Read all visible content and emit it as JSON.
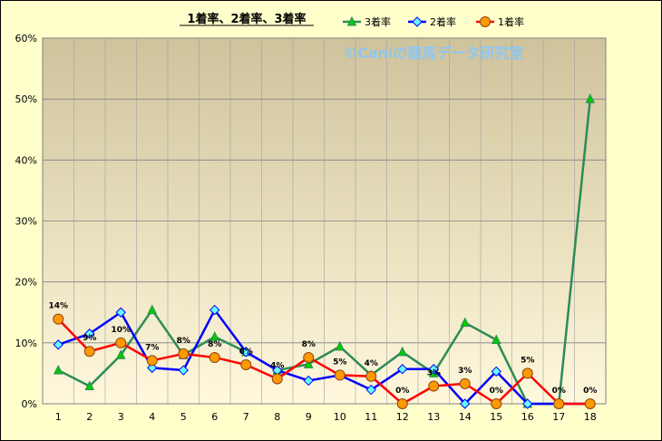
{
  "chart_data": {
    "type": "line",
    "title": "1着率、2着率、3着率",
    "watermark": "©Caniの競馬データ研究室",
    "categories": [
      "1",
      "2",
      "3",
      "4",
      "5",
      "6",
      "7",
      "8",
      "9",
      "10",
      "11",
      "12",
      "13",
      "14",
      "15",
      "16",
      "17",
      "18"
    ],
    "ylim": [
      0,
      0.6
    ],
    "yticks": [
      "0%",
      "10%",
      "20%",
      "30%",
      "40%",
      "50%",
      "60%"
    ],
    "grid": true,
    "legend_position": "top",
    "series": [
      {
        "name": "3着率",
        "color": "#2e8b57",
        "marker": "triangle",
        "marker_fill": "#00cc00",
        "values": [
          0.055,
          0.029,
          0.08,
          0.154,
          0.08,
          0.11,
          0.085,
          0.055,
          0.065,
          0.094,
          0.047,
          0.085,
          0.05,
          0.133,
          0.105,
          0.0,
          0.0,
          0.5
        ]
      },
      {
        "name": "2着率",
        "color": "#0000ff",
        "marker": "diamond",
        "marker_fill": "#66ffff",
        "values": [
          0.097,
          0.115,
          0.15,
          0.059,
          0.055,
          0.154,
          0.085,
          0.055,
          0.038,
          0.047,
          0.023,
          0.057,
          0.057,
          0.0,
          0.053,
          0.0,
          0.0,
          0.0
        ]
      },
      {
        "name": "1着率",
        "color": "#ff0000",
        "marker": "circle",
        "marker_fill": "#ff9900",
        "values": [
          0.139,
          0.086,
          0.1,
          0.071,
          0.082,
          0.076,
          0.064,
          0.041,
          0.076,
          0.047,
          0.045,
          0.0,
          0.029,
          0.033,
          0.0,
          0.05,
          0.0,
          0.0
        ],
        "labels": [
          "14%",
          "9%",
          "10%",
          "7%",
          "8%",
          "8%",
          "6%",
          "4%",
          "8%",
          "5%",
          "4%",
          "0%",
          "3%",
          "3%",
          "0%",
          "5%",
          "0%",
          "0%"
        ]
      }
    ]
  }
}
